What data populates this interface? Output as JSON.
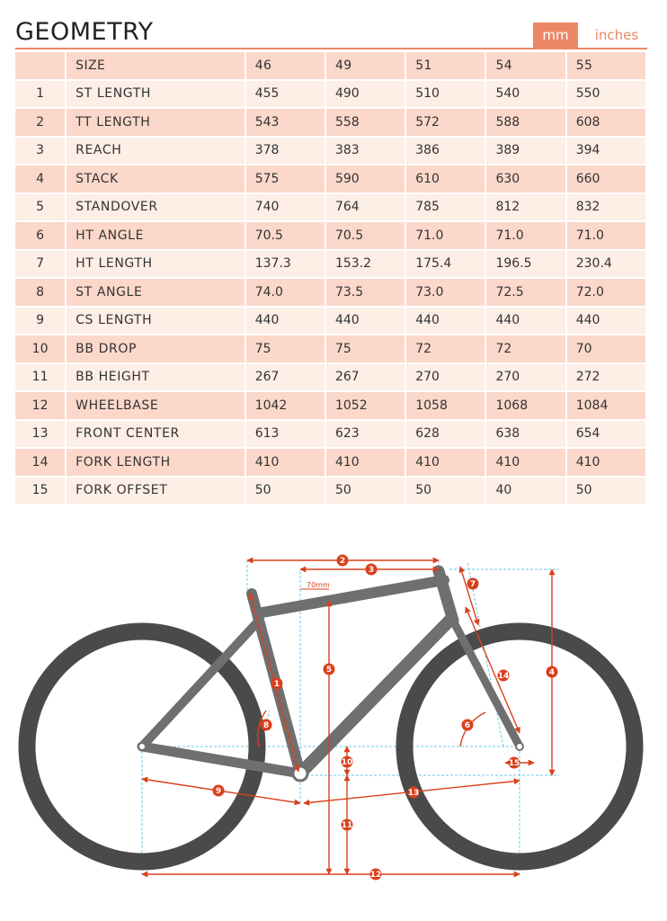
{
  "title": "GEOMETRY",
  "units": {
    "mm": "mm",
    "inches": "inches",
    "active": "mm"
  },
  "table": {
    "header": [
      "",
      "SIZE",
      "46",
      "49",
      "51",
      "54",
      "55"
    ],
    "rows": [
      [
        "1",
        "ST LENGTH",
        "455",
        "490",
        "510",
        "540",
        "550"
      ],
      [
        "2",
        "TT LENGTH",
        "543",
        "558",
        "572",
        "588",
        "608"
      ],
      [
        "3",
        "REACH",
        "378",
        "383",
        "386",
        "389",
        "394"
      ],
      [
        "4",
        "STACK",
        "575",
        "590",
        "610",
        "630",
        "660"
      ],
      [
        "5",
        "STANDOVER",
        "740",
        "764",
        "785",
        "812",
        "832"
      ],
      [
        "6",
        "HT ANGLE",
        "70.5",
        "70.5",
        "71.0",
        "71.0",
        "71.0"
      ],
      [
        "7",
        "HT LENGTH",
        "137.3",
        "153.2",
        "175.4",
        "196.5",
        "230.4"
      ],
      [
        "8",
        "ST ANGLE",
        "74.0",
        "73.5",
        "73.0",
        "72.5",
        "72.0"
      ],
      [
        "9",
        "CS LENGTH",
        "440",
        "440",
        "440",
        "440",
        "440"
      ],
      [
        "10",
        "BB DROP",
        "75",
        "75",
        "72",
        "72",
        "70"
      ],
      [
        "11",
        "BB HEIGHT",
        "267",
        "267",
        "270",
        "270",
        "272"
      ],
      [
        "12",
        "WHEELBASE",
        "1042",
        "1052",
        "1058",
        "1068",
        "1084"
      ],
      [
        "13",
        "FRONT CENTER",
        "613",
        "623",
        "628",
        "638",
        "654"
      ],
      [
        "14",
        "FORK LENGTH",
        "410",
        "410",
        "410",
        "410",
        "410"
      ],
      [
        "15",
        "FORK OFFSET",
        "50",
        "50",
        "50",
        "40",
        "50"
      ]
    ]
  },
  "diagram": {
    "note_70mm": "70mm",
    "badges": [
      "1",
      "2",
      "3",
      "4",
      "5",
      "6",
      "7",
      "8",
      "9",
      "10",
      "11",
      "12",
      "13",
      "14",
      "15"
    ]
  },
  "colors": {
    "accent": "#ec8766",
    "dim_red": "#d9401c",
    "frame": "#6f6f6f",
    "tire": "#4a4a4a",
    "guide_blue": "#6cc8e8"
  }
}
